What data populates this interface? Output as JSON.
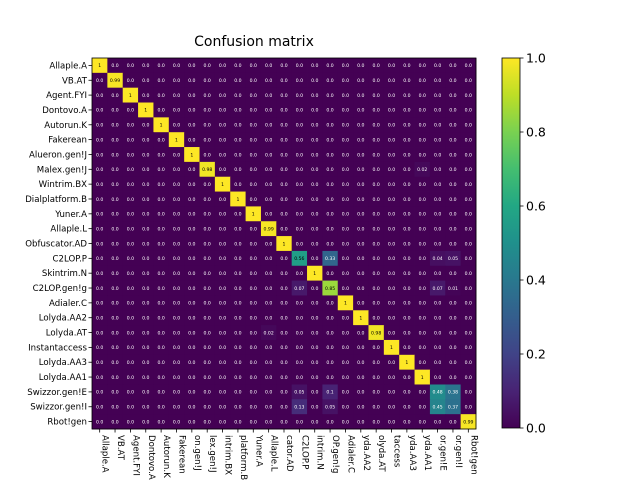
{
  "chart_data": {
    "type": "heatmap",
    "title": "Confusion matrix",
    "labels": [
      "Allaple.A",
      "VB.AT",
      "Agent.FYI",
      "Dontovo.A",
      "Autorun.K",
      "Fakerean",
      "Alueron.gen!J",
      "Malex.gen!J",
      "Wintrim.BX",
      "Dialplatform.B",
      "Yuner.A",
      "Allaple.L",
      "Obfuscator.AD",
      "C2LOP.P",
      "Skintrim.N",
      "C2LOP.gen!g",
      "Adialer.C",
      "Lolyda.AA2",
      "Lolyda.AT",
      "Instantaccess",
      "Lolyda.AA3",
      "Lolyda.AA1",
      "Swizzor.gen!E",
      "Swizzor.gen!I",
      "Rbot!gen"
    ],
    "x_tick_labels": [
      "Allaple.A",
      "VB.AT",
      "Agent.FYI",
      "Dontovo.A",
      "Autorun.K",
      "Fakerean",
      "on.gen!J",
      "lex.gen!J",
      "intrim.BX",
      "platform.B",
      "Yuner.A",
      "Allaple.L",
      "cator.AD",
      "C2LOP.P",
      "intrim.N",
      "OP.gen!g",
      "Adialer.C",
      "yda.AA2",
      "olyda.AT",
      "taccess",
      "yda.AA3",
      "yda.AA1",
      "or.gen!E",
      "or.gen!I",
      "Rbot!gen"
    ],
    "diagonal": [
      1.0,
      0.99,
      1.0,
      1.0,
      1.0,
      1.0,
      1.0,
      0.98,
      1.0,
      1.0,
      1.0,
      0.99,
      1.0,
      0.56,
      1.0,
      0.85,
      1.0,
      1.0,
      0.98,
      1.0,
      1.0,
      1.0,
      0.48,
      0.37,
      0.99
    ],
    "off_diagonal": [
      {
        "row": 7,
        "col": 21,
        "value": 0.02
      },
      {
        "row": 13,
        "col": 15,
        "value": 0.33
      },
      {
        "row": 13,
        "col": 22,
        "value": 0.04
      },
      {
        "row": 13,
        "col": 23,
        "value": 0.05
      },
      {
        "row": 15,
        "col": 13,
        "value": 0.07
      },
      {
        "row": 15,
        "col": 22,
        "value": 0.07
      },
      {
        "row": 15,
        "col": 23,
        "value": 0.01
      },
      {
        "row": 18,
        "col": 11,
        "value": 0.02
      },
      {
        "row": 22,
        "col": 13,
        "value": 0.05
      },
      {
        "row": 22,
        "col": 15,
        "value": 0.1
      },
      {
        "row": 22,
        "col": 23,
        "value": 0.38
      },
      {
        "row": 23,
        "col": 13,
        "value": 0.13
      },
      {
        "row": 23,
        "col": 15,
        "value": 0.05
      },
      {
        "row": 23,
        "col": 22,
        "value": 0.45
      }
    ],
    "colorbar_ticks": [
      "0.0",
      "0.2",
      "0.4",
      "0.6",
      "0.8",
      "1.0"
    ],
    "colorbar_range": [
      0,
      1
    ],
    "colormap": "viridis",
    "zero_label": "0.0"
  }
}
